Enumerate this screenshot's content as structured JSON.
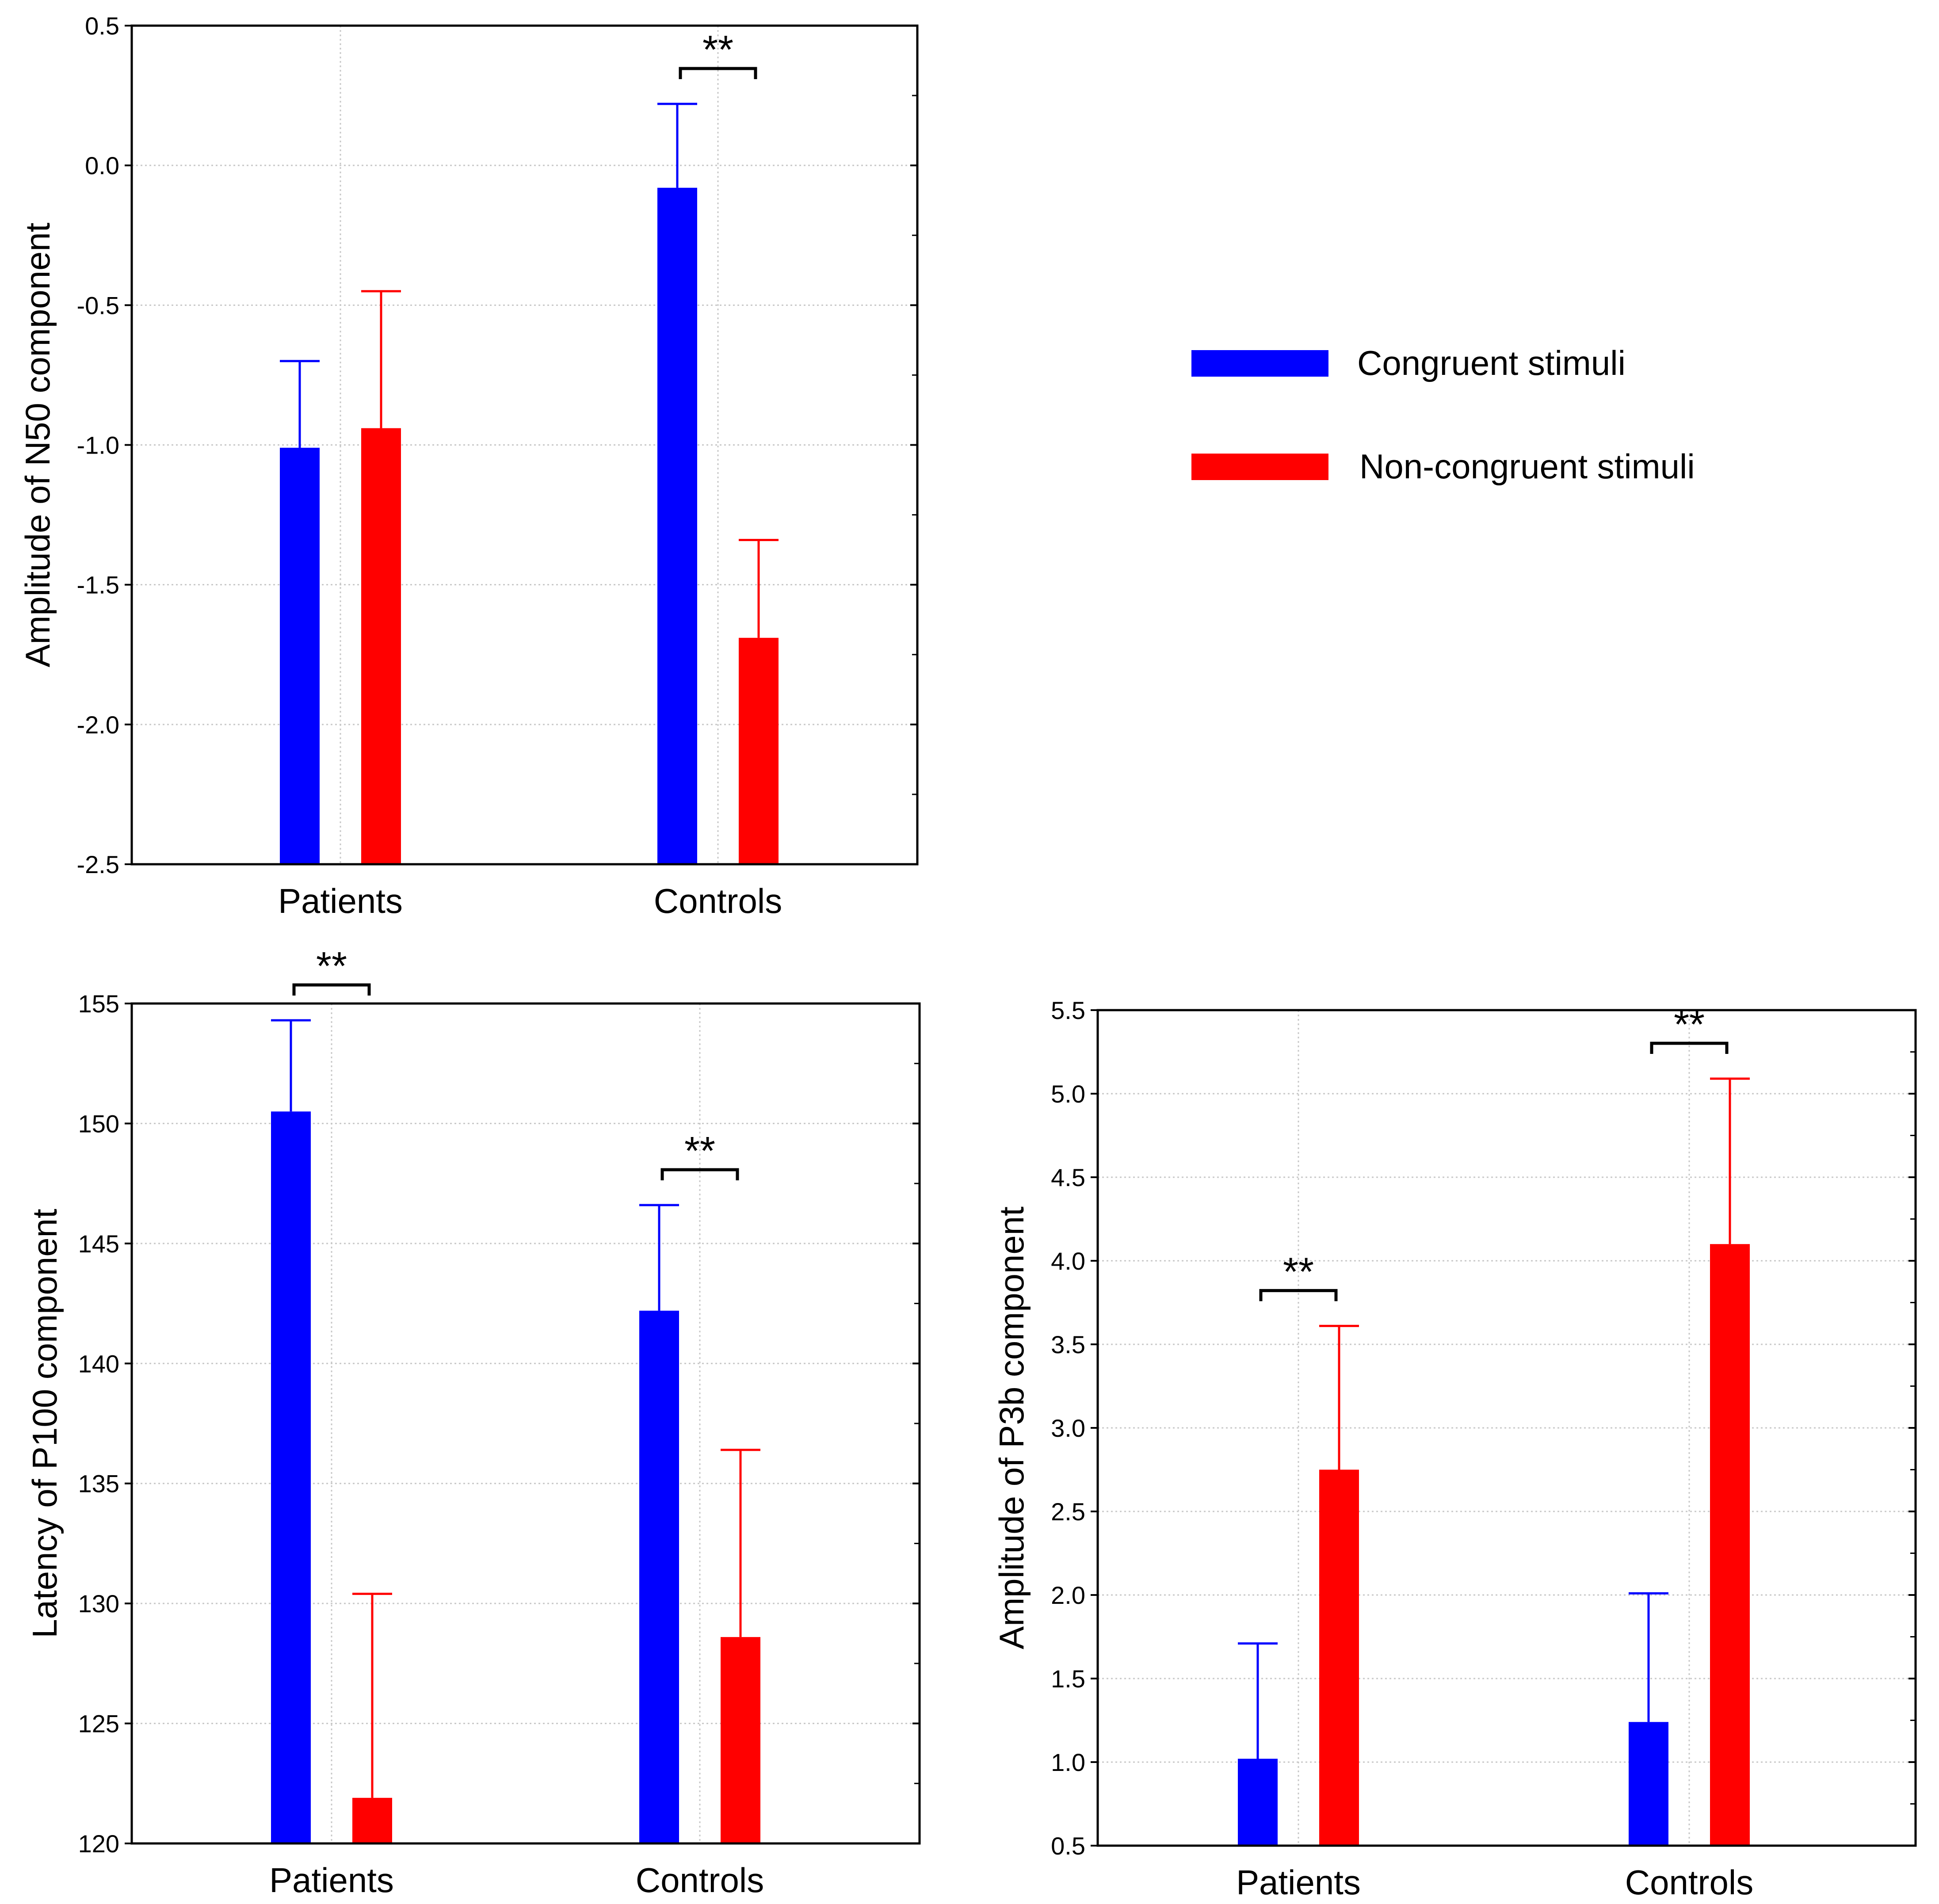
{
  "colors": {
    "congruent": "#0000FF",
    "noncongruent": "#FF0000",
    "grid": "#c8c8c8",
    "axis": "#000000"
  },
  "legend": {
    "entries": [
      {
        "label": "Congruent stimuli",
        "color": "#0000FF"
      },
      {
        "label": "Non-congruent stimuli",
        "color": "#FF0000"
      }
    ],
    "placement": "top-right"
  },
  "chart_data": [
    {
      "type": "bar",
      "title": "",
      "xlabel": "",
      "ylabel": "Amplitude of N50 component",
      "ylim": [
        -2.5,
        0.5
      ],
      "yticks": [
        0.5,
        0.0,
        -0.5,
        -1.0,
        -1.5,
        -2.0,
        -2.5
      ],
      "ytick_labels": [
        "0.5",
        "0.0",
        "-0.5",
        "-1.0",
        "-1.5",
        "-2.0",
        "-2.5"
      ],
      "categories": [
        "Patients",
        "Controls"
      ],
      "series": [
        {
          "name": "Congruent stimuli",
          "color": "#0000FF",
          "values": [
            -1.01,
            -0.08
          ],
          "error_upper": [
            -0.7,
            0.22
          ]
        },
        {
          "name": "Non-congruent stimuli",
          "color": "#FF0000",
          "values": [
            -0.94,
            -1.69
          ],
          "error_upper": [
            -0.45,
            -1.34
          ]
        }
      ],
      "significance": [
        {
          "category": "Controls",
          "label": "**"
        }
      ],
      "grid": true
    },
    {
      "type": "bar",
      "title": "",
      "xlabel": "",
      "ylabel": "Latency of P100 component",
      "ylim": [
        120,
        155
      ],
      "yticks": [
        155,
        150,
        145,
        140,
        135,
        130,
        125,
        120
      ],
      "ytick_labels": [
        "155",
        "150",
        "145",
        "140",
        "135",
        "130",
        "125",
        "120"
      ],
      "categories": [
        "Patients",
        "Controls"
      ],
      "series": [
        {
          "name": "Congruent stimuli",
          "color": "#0000FF",
          "values": [
            150.5,
            142.2
          ],
          "error_upper": [
            154.3,
            146.6
          ]
        },
        {
          "name": "Non-congruent stimuli",
          "color": "#FF0000",
          "values": [
            121.9,
            128.6
          ],
          "error_upper": [
            130.4,
            136.4
          ]
        }
      ],
      "significance": [
        {
          "category": "Patients",
          "label": "**"
        },
        {
          "category": "Controls",
          "label": "**"
        }
      ],
      "grid": true
    },
    {
      "type": "bar",
      "title": "",
      "xlabel": "",
      "ylabel": "Amplitude of P3b component",
      "ylim": [
        0.5,
        5.5
      ],
      "yticks": [
        5.5,
        5.0,
        4.5,
        4.0,
        3.5,
        3.0,
        2.5,
        2.0,
        1.5,
        1.0,
        0.5
      ],
      "ytick_labels": [
        "5.5",
        "5.0",
        "4.5",
        "4.0",
        "3.5",
        "3.0",
        "2.5",
        "2.0",
        "1.5",
        "1.0",
        "0.5"
      ],
      "categories": [
        "Patients",
        "Controls"
      ],
      "series": [
        {
          "name": "Congruent stimuli",
          "color": "#0000FF",
          "values": [
            1.02,
            1.24
          ],
          "error_upper": [
            1.71,
            2.01
          ]
        },
        {
          "name": "Non-congruent stimuli",
          "color": "#FF0000",
          "values": [
            2.75,
            4.1
          ],
          "error_upper": [
            3.61,
            5.09
          ]
        }
      ],
      "significance": [
        {
          "category": "Patients",
          "label": "**"
        },
        {
          "category": "Controls",
          "label": "**"
        }
      ],
      "grid": true
    }
  ]
}
